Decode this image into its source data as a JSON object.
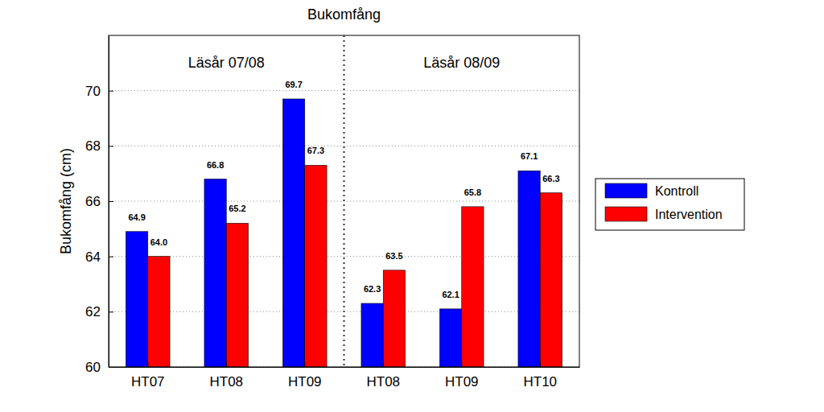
{
  "chart_data": {
    "type": "bar",
    "title": "Bukomfång",
    "y_label": "Bukomfång (cm)",
    "categories": [
      "HT07",
      "HT08",
      "HT09",
      "HT08",
      "HT09",
      "HT10"
    ],
    "series": [
      {
        "name": "Kontroll",
        "color": "#0000ff",
        "values": [
          64.9,
          66.8,
          69.7,
          62.3,
          62.1,
          67.1
        ],
        "value_labels": [
          "64.9",
          "66.8",
          "69.7",
          "62.3",
          "62.1",
          "67.1"
        ]
      },
      {
        "name": "Intervention",
        "color": "#ff0000",
        "values": [
          64.0,
          65.2,
          67.3,
          63.5,
          65.8,
          66.3
        ],
        "value_labels": [
          "64.0",
          "65.2",
          "67.3",
          "63.5",
          "65.8",
          "66.3"
        ]
      }
    ],
    "annotations": [
      "Läsår 07/08",
      "Läsår 08/09"
    ],
    "ylim": [
      60,
      72
    ],
    "yticks": [
      60,
      62,
      64,
      66,
      68,
      70
    ],
    "grid": true,
    "legend": "right",
    "data_labels": true
  }
}
